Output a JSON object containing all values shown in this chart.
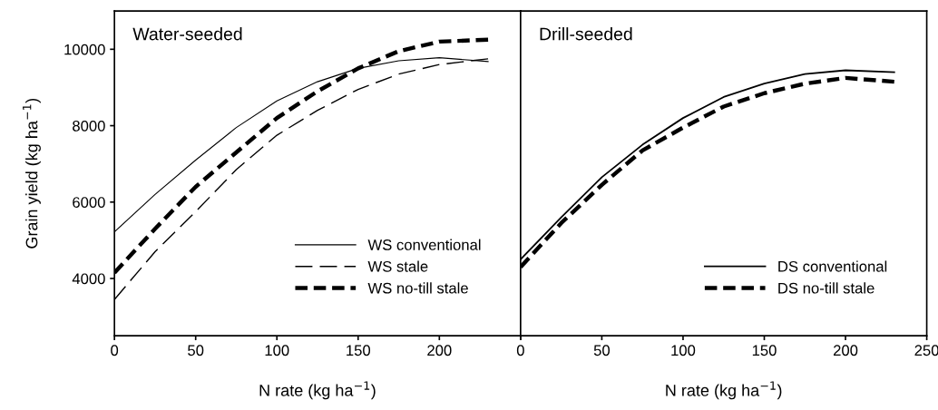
{
  "chart_data": [
    {
      "type": "line",
      "title": "Water-seeded",
      "xlabel": "N rate (kg ha$^{−1}$)",
      "ylabel": "Grain yield (kg ha$^{−1}$)",
      "xlim": [
        0,
        250
      ],
      "xticks": [
        0,
        50,
        100,
        150,
        200,
        {
          "value": 250,
          "label": null
        }
      ],
      "ylim": [
        2500,
        11000
      ],
      "yticks": [
        4000,
        6000,
        8000,
        10000
      ],
      "x": [
        0,
        25,
        50,
        75,
        100,
        125,
        150,
        175,
        200,
        230
      ],
      "legend": "bottom right",
      "grid": false,
      "marker": "none",
      "series": [
        {
          "name": "WS conventional",
          "color": "#000000",
          "line_style": "solid",
          "values": [
            5220,
            6200,
            7100,
            7950,
            8650,
            9150,
            9500,
            9700,
            9780,
            9680
          ]
        },
        {
          "name": "WS stale",
          "color": "#000000",
          "line_style": "dashed",
          "values": [
            3450,
            4700,
            5750,
            6850,
            7750,
            8400,
            8950,
            9350,
            9600,
            9750
          ]
        },
        {
          "name": "WS no-till stale",
          "color": "#000000",
          "line_style": "dashed",
          "values": [
            4150,
            5300,
            6400,
            7300,
            8200,
            8900,
            9500,
            9950,
            10200,
            10250
          ]
        }
      ]
    },
    {
      "type": "line",
      "title": "Drill-seeded",
      "xlabel": "N rate (kg ha$^{−1}$)",
      "xlim": [
        0,
        250
      ],
      "xticks": [
        0,
        50,
        100,
        150,
        200,
        250
      ],
      "ylim": [
        2500,
        11000
      ],
      "yticks": [
        4000,
        6000,
        8000,
        10000
      ],
      "tick_labels": "x",
      "x": [
        0,
        25,
        50,
        75,
        100,
        125,
        150,
        175,
        200,
        230
      ],
      "legend": "bottom right",
      "grid": false,
      "marker": "none",
      "series": [
        {
          "name": "DS conventional",
          "color": "#000000",
          "line_style": "solid",
          "values": [
            4500,
            5600,
            6650,
            7500,
            8200,
            8750,
            9100,
            9350,
            9450,
            9400
          ]
        },
        {
          "name": "DS no-till stale",
          "color": "#000000",
          "line_style": "dashed",
          "values": [
            4300,
            5450,
            6450,
            7350,
            7950,
            8500,
            8850,
            9100,
            9250,
            9150
          ]
        }
      ]
    }
  ]
}
